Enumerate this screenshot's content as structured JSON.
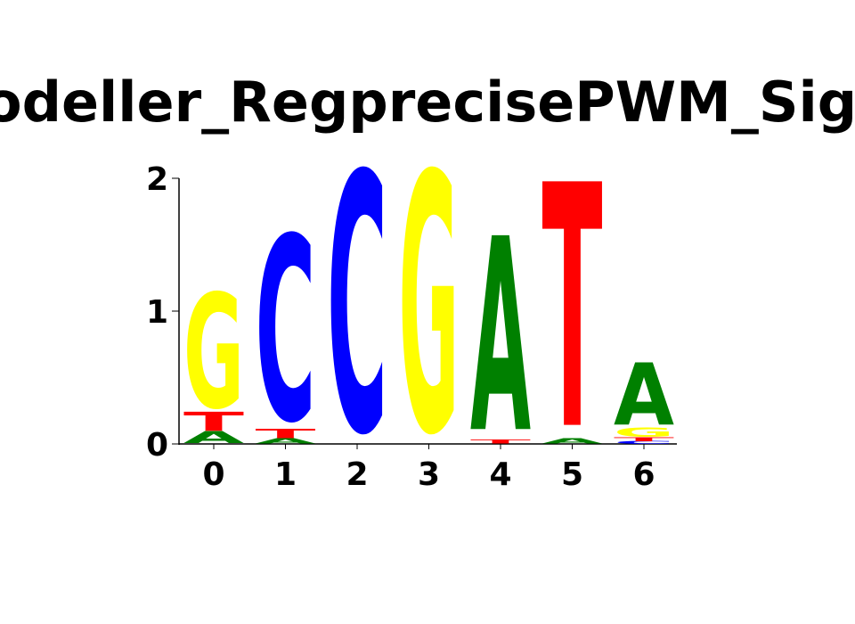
{
  "title": "odeller_RegprecisePWM_Sigma",
  "chart_data": {
    "type": "sequence-logo",
    "title": "odeller_RegprecisePWM_Sigma",
    "x": [
      0,
      1,
      2,
      3,
      4,
      5,
      6
    ],
    "x_tick_labels": [
      "0",
      "1",
      "2",
      "3",
      "4",
      "5",
      "6"
    ],
    "y_ticks": [
      0,
      1,
      2
    ],
    "y_tick_labels": [
      "0",
      "1",
      "2"
    ],
    "ylim": [
      0,
      2
    ],
    "letter_colors": {
      "A": "#008000",
      "C": "#0000ff",
      "G": "#ffff00",
      "T": "#ff0000"
    },
    "positions": [
      {
        "position": 0,
        "letters": [
          {
            "letter": "A",
            "height": 0.09
          },
          {
            "letter": "T",
            "height": 0.14
          },
          {
            "letter": "G",
            "height": 0.85
          }
        ]
      },
      {
        "position": 1,
        "letters": [
          {
            "letter": "A",
            "height": 0.04
          },
          {
            "letter": "T",
            "height": 0.07
          },
          {
            "letter": "C",
            "height": 1.37
          }
        ]
      },
      {
        "position": 2,
        "letters": [
          {
            "letter": "C",
            "height": 1.92
          }
        ]
      },
      {
        "position": 3,
        "letters": [
          {
            "letter": "G",
            "height": 1.92
          }
        ]
      },
      {
        "position": 4,
        "letters": [
          {
            "letter": "T",
            "height": 0.03
          },
          {
            "letter": "A",
            "height": 1.44
          }
        ]
      },
      {
        "position": 5,
        "letters": [
          {
            "letter": "A",
            "height": 0.04
          },
          {
            "letter": "T",
            "height": 1.81
          }
        ]
      },
      {
        "position": 6,
        "letters": [
          {
            "letter": "C",
            "height": 0.02
          },
          {
            "letter": "T",
            "height": 0.03
          },
          {
            "letter": "G",
            "height": 0.07
          },
          {
            "letter": "A",
            "height": 0.46
          }
        ]
      }
    ]
  }
}
